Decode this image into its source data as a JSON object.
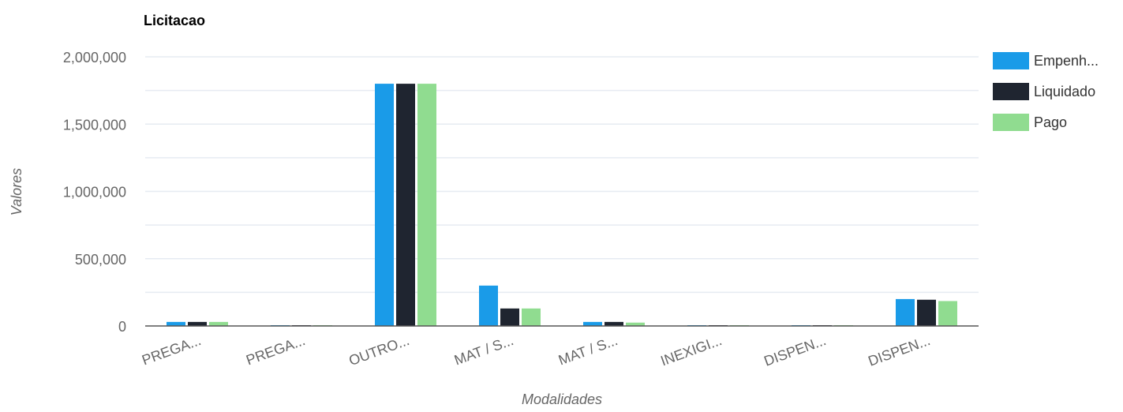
{
  "chart_data": {
    "type": "bar",
    "title": "Licitacao",
    "xlabel": "Modalidades",
    "ylabel": "Valores",
    "ylim": [
      0,
      2000000
    ],
    "yticks": [
      0,
      500000,
      1000000,
      1500000,
      2000000
    ],
    "ytick_labels": [
      "0",
      "500,000",
      "1,000,000",
      "1,500,000",
      "2,000,000"
    ],
    "grid": true,
    "legend_position": "right",
    "categories": [
      "PREGA...",
      "PREGA...",
      "OUTRO...",
      "MAT / S...",
      "MAT / S...",
      "INEXIGI...",
      "DISPEN...",
      "DISPEN..."
    ],
    "series": [
      {
        "name": "Empenh...",
        "color": "#1a9be8",
        "values": [
          30000,
          3000,
          1800000,
          300000,
          30000,
          5000,
          5000,
          200000
        ]
      },
      {
        "name": "Liquidado",
        "color": "#1f2530",
        "values": [
          30000,
          3000,
          1800000,
          130000,
          30000,
          5000,
          5000,
          195000
        ]
      },
      {
        "name": "Pago",
        "color": "#90dc90",
        "values": [
          30000,
          3000,
          1800000,
          130000,
          25000,
          4000,
          4000,
          185000
        ]
      }
    ]
  }
}
